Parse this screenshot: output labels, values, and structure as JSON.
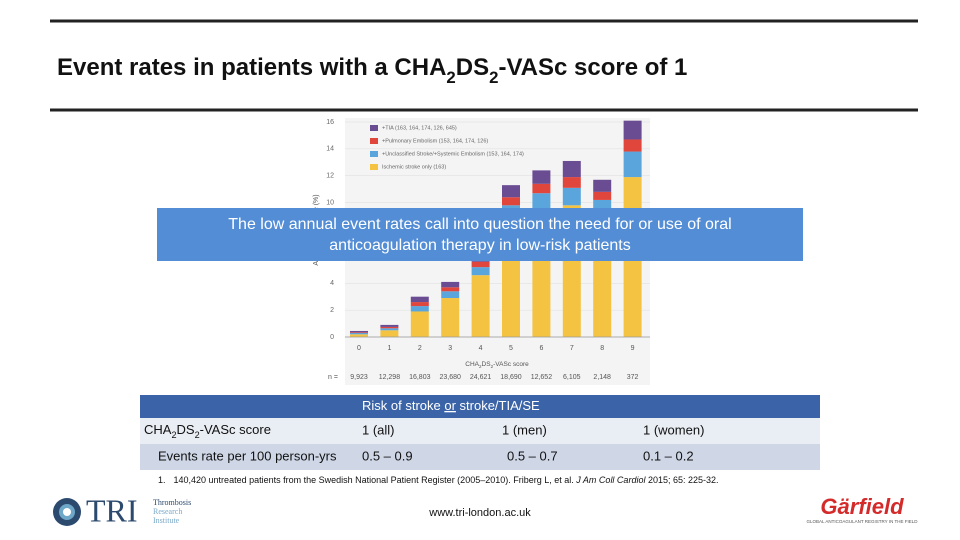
{
  "title": [
    "Event rates in patients with a CHA",
    "2",
    "DS",
    "2",
    "-VASc score of 1"
  ],
  "chart_data": {
    "type": "stacked_bar",
    "y_label": "Annual Event Rate (%)",
    "x_label": [
      "CHA",
      "2",
      "DS",
      "2",
      "-VASc score"
    ],
    "categories": [
      "0",
      "1",
      "2",
      "3",
      "4",
      "5",
      "6",
      "7",
      "8",
      "9"
    ],
    "ylim": [
      0,
      16
    ],
    "yticks": [
      0,
      2,
      4,
      6,
      8,
      10,
      12,
      14,
      16
    ],
    "series": [
      {
        "name": "Ischemic stroke only (163)",
        "color": "#f5c342",
        "values": [
          0.2,
          0.5,
          1.9,
          2.9,
          4.6,
          8.8,
          9.5,
          9.8,
          9.2,
          11.9
        ]
      },
      {
        "name": "+Unclassified Stroke/+Systemic Embolism (153, 164, 174)",
        "color": "#5aa6dc",
        "values": [
          0.1,
          0.15,
          0.4,
          0.5,
          0.6,
          1.0,
          1.2,
          1.3,
          1.0,
          1.9
        ]
      },
      {
        "name": "+Pulmonary Embolism (153, 164, 174, 126)",
        "color": "#e0463c",
        "values": [
          0.05,
          0.1,
          0.3,
          0.3,
          0.4,
          0.6,
          0.7,
          0.8,
          0.6,
          0.9
        ]
      },
      {
        "name": "+TIA (163, 164, 174, 126, 645)",
        "color": "#6a4c93",
        "values": [
          0.1,
          0.15,
          0.4,
          0.4,
          0.5,
          0.9,
          1.0,
          1.2,
          0.9,
          1.4
        ]
      }
    ],
    "n_label": "n =",
    "n_values": [
      "9,923",
      "12,298",
      "16,803",
      "23,680",
      "24,621",
      "18,690",
      "12,652",
      "6,105",
      "2,148",
      "372"
    ]
  },
  "callout": [
    "The low annual event rates call into question the need for or use of oral",
    "anticoagulation therapy in low-risk patients"
  ],
  "table": {
    "header": [
      "Risk of stroke ",
      "or",
      " stroke/TIA/SE"
    ],
    "rows": [
      [
        [
          "CHA",
          "2",
          "DS",
          "2",
          "-VASc score"
        ],
        "1 (all)",
        "1 (men)",
        "1 (women)"
      ],
      [
        "Events rate per 100 person-yrs",
        "0.5 – 0.9",
        "0.5 – 0.7",
        "0.1 – 0.2"
      ]
    ]
  },
  "footnote": [
    "1.",
    "140,420 untreated patients from the Swedish National Patient Register (2005–2010). Friberg L, et al. ",
    "J Am Coll Cardiol",
    " 2015; 65: 225-32."
  ],
  "footer": {
    "logo_left": "TRI",
    "logo_left_sub": [
      "Thrombosis",
      "Research",
      "Institute"
    ],
    "url": "www.tri-london.ac.uk",
    "logo_right": "Gärfield",
    "logo_right_sub": "GLOBAL ANTICOAGULANT REGISTRY IN THE FIELD"
  }
}
